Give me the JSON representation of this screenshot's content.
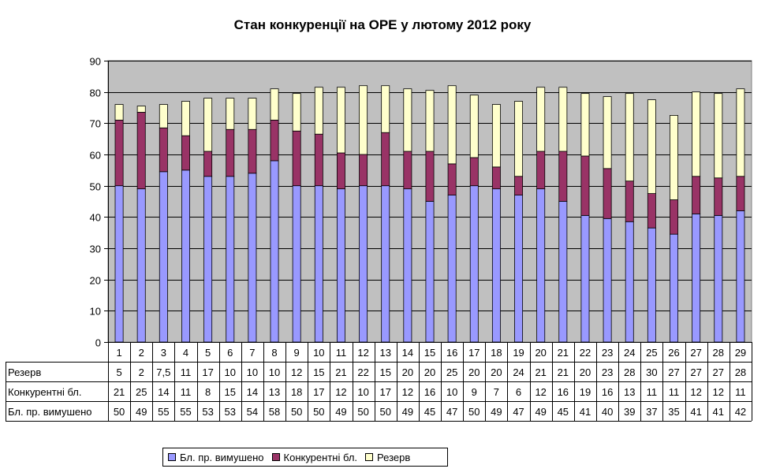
{
  "chart_data": {
    "type": "bar",
    "stacked": true,
    "title": "Стан конкуренції на ОРЕ  у лютому 2012 року",
    "ylim": [
      0,
      90
    ],
    "yticks": [
      0,
      10,
      20,
      30,
      40,
      50,
      60,
      70,
      80,
      90
    ],
    "grid": true,
    "legend_position": "bottom",
    "categories": [
      "1",
      "2",
      "3",
      "4",
      "5",
      "6",
      "7",
      "8",
      "9",
      "10",
      "11",
      "12",
      "13",
      "14",
      "15",
      "16",
      "17",
      "18",
      "19",
      "20",
      "21",
      "22",
      "23",
      "24",
      "25",
      "26",
      "27",
      "28",
      "29"
    ],
    "series": [
      {
        "name": "Бл. пр. вимушено",
        "color": "#9999ff",
        "values": [
          50,
          49,
          54.5,
          55,
          53,
          53,
          54,
          58,
          50,
          50,
          49,
          50,
          50,
          49,
          45,
          47,
          50,
          49,
          47,
          49,
          45,
          40.5,
          39.5,
          38.5,
          36.5,
          34.5,
          41,
          40.5,
          42
        ],
        "labels": [
          "50",
          "49",
          "55",
          "55",
          "53",
          "53",
          "54",
          "58",
          "50",
          "50",
          "49",
          "50",
          "50",
          "49",
          "45",
          "47",
          "50",
          "49",
          "47",
          "49",
          "45",
          "41",
          "40",
          "39",
          "37",
          "35",
          "41",
          "41",
          "42"
        ]
      },
      {
        "name": "Конкурентні бл.",
        "color": "#993366",
        "values": [
          21,
          24.5,
          14,
          11,
          8,
          15,
          14,
          13,
          17.5,
          16.5,
          11.5,
          10,
          17,
          12,
          16,
          10,
          9,
          7,
          6,
          12,
          16,
          19,
          16,
          13,
          11,
          11,
          12,
          12,
          11
        ],
        "labels": [
          "21",
          "25",
          "14",
          "11",
          "8",
          "15",
          "14",
          "13",
          "18",
          "17",
          "12",
          "10",
          "17",
          "12",
          "16",
          "10",
          "9",
          "7",
          "6",
          "12",
          "16",
          "19",
          "16",
          "13",
          "11",
          "11",
          "12",
          "12",
          "11"
        ]
      },
      {
        "name": "Резерв",
        "color": "#ffffcc",
        "values": [
          5,
          2,
          7.5,
          11,
          17,
          10,
          10,
          10,
          12,
          15,
          21,
          22,
          15,
          20,
          19.5,
          25,
          20,
          20,
          24,
          20.5,
          20.5,
          20,
          23,
          28,
          30,
          27,
          27,
          27,
          28
        ],
        "labels": [
          "5",
          "2",
          "7,5",
          "11",
          "17",
          "10",
          "10",
          "10",
          "12",
          "15",
          "21",
          "22",
          "15",
          "20",
          "20",
          "25",
          "20",
          "20",
          "24",
          "21",
          "21",
          "20",
          "23",
          "28",
          "30",
          "27",
          "27",
          "27",
          "28"
        ]
      }
    ],
    "table_rows_order": [
      "Резерв",
      "Конкурентні бл.",
      "Бл. пр. вимушено"
    ],
    "plot_background": "#c0c0c0"
  }
}
